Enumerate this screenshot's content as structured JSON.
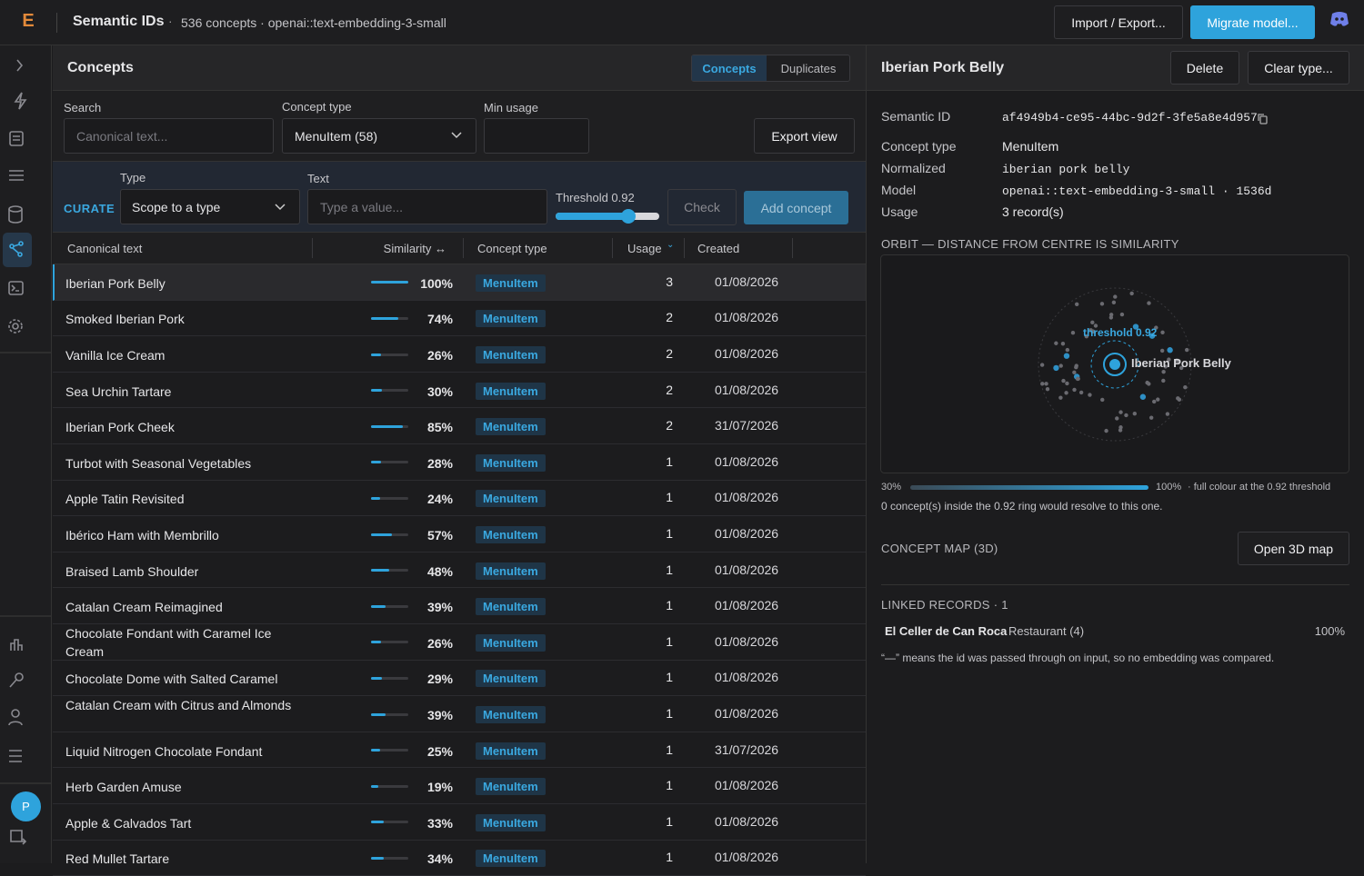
{
  "header": {
    "title": "Semantic IDs",
    "subtitle": "536 concepts · openai::text-embedding-3-small",
    "buttons": [
      "Import / Export...",
      "Migrate model..."
    ]
  },
  "sidebar": {
    "avatar": "P"
  },
  "concepts": {
    "title": "Concepts",
    "tabs": [
      "Concepts",
      "Duplicates"
    ],
    "filters": {
      "search_label": "Search",
      "search_placeholder": "Canonical text...",
      "type_label": "Concept type",
      "type_value": "MenuItem (58)",
      "min_usage_label": "Min usage",
      "export": "Export view"
    },
    "curate": {
      "label": "CURATE",
      "type_label": "Type",
      "type_value": "Scope to a type",
      "text_label": "Text",
      "text_placeholder": "Type a value...",
      "threshold": "Threshold 0.92",
      "check": "Check",
      "add": "Add concept"
    },
    "table": {
      "columns": [
        "Canonical text",
        "Similarity ↔",
        "Concept type",
        "Usage",
        "Created"
      ],
      "rows": [
        {
          "name": "Iberian Pork Belly",
          "similarity": 100,
          "similarity_label": "100%",
          "type": "MenuItem",
          "usage": 3,
          "created": "01/08/2026"
        },
        {
          "name": "Smoked Iberian Pork",
          "similarity": 74,
          "similarity_label": "74%",
          "type": "MenuItem",
          "usage": 2,
          "created": "01/08/2026"
        },
        {
          "name": "Vanilla Ice Cream",
          "similarity": 26,
          "similarity_label": "26%",
          "type": "MenuItem",
          "usage": 2,
          "created": "01/08/2026"
        },
        {
          "name": "Sea Urchin Tartare",
          "similarity": 30,
          "similarity_label": "30%",
          "type": "MenuItem",
          "usage": 2,
          "created": "01/08/2026"
        },
        {
          "name": "Iberian Pork Cheek",
          "similarity": 85,
          "similarity_label": "85%",
          "type": "MenuItem",
          "usage": 2,
          "created": "31/07/2026"
        },
        {
          "name": "Turbot with Seasonal Vegetables",
          "similarity": 28,
          "similarity_label": "28%",
          "type": "MenuItem",
          "usage": 1,
          "created": "01/08/2026"
        },
        {
          "name": "Apple Tatin Revisited",
          "similarity": 24,
          "similarity_label": "24%",
          "type": "MenuItem",
          "usage": 1,
          "created": "01/08/2026"
        },
        {
          "name": "Ibérico Ham with Membrillo",
          "similarity": 57,
          "similarity_label": "57%",
          "type": "MenuItem",
          "usage": 1,
          "created": "01/08/2026"
        },
        {
          "name": "Braised Lamb Shoulder",
          "similarity": 48,
          "similarity_label": "48%",
          "type": "MenuItem",
          "usage": 1,
          "created": "01/08/2026"
        },
        {
          "name": "Catalan Cream Reimagined",
          "similarity": 39,
          "similarity_label": "39%",
          "type": "MenuItem",
          "usage": 1,
          "created": "01/08/2026"
        },
        {
          "name": "Chocolate Fondant with Caramel Ice Cream",
          "similarity": 26,
          "similarity_label": "26%",
          "type": "MenuItem",
          "usage": 1,
          "created": "01/08/2026"
        },
        {
          "name": "Chocolate Dome with Salted Caramel",
          "similarity": 29,
          "similarity_label": "29%",
          "type": "MenuItem",
          "usage": 1,
          "created": "01/08/2026"
        },
        {
          "name": "Catalan Cream with Citrus and Almonds",
          "similarity": 39,
          "similarity_label": "39%",
          "type": "MenuItem",
          "usage": 1,
          "created": "01/08/2026"
        },
        {
          "name": "Liquid Nitrogen Chocolate Fondant",
          "similarity": 25,
          "similarity_label": "25%",
          "type": "MenuItem",
          "usage": 1,
          "created": "31/07/2026"
        },
        {
          "name": "Herb Garden Amuse",
          "similarity": 19,
          "similarity_label": "19%",
          "type": "MenuItem",
          "usage": 1,
          "created": "01/08/2026"
        },
        {
          "name": "Apple & Calvados Tart",
          "similarity": 33,
          "similarity_label": "33%",
          "type": "MenuItem",
          "usage": 1,
          "created": "01/08/2026"
        },
        {
          "name": "Red Mullet Tartare",
          "similarity": 34,
          "similarity_label": "34%",
          "type": "MenuItem",
          "usage": 1,
          "created": "01/08/2026"
        }
      ]
    }
  },
  "detail": {
    "title": "Iberian Pork Belly",
    "buttons": [
      "Delete",
      "Clear type..."
    ],
    "fields": [
      {
        "label": "Semantic ID",
        "value": "af4949b4-ce95-44bc-9d2f-3fe5a8e4d957"
      },
      {
        "label": "Concept type",
        "value": "MenuItem"
      },
      {
        "label": "Normalized",
        "value": "iberian pork belly"
      },
      {
        "label": "Model",
        "value": "openai::text-embedding-3-small · 1536d"
      },
      {
        "label": "Usage",
        "value": "3 record(s)"
      }
    ],
    "orbit": {
      "heading": "ORBIT — DISTANCE FROM CENTRE IS SIMILARITY",
      "threshold_label": "threshold 0.92",
      "center_label": "Iberian Pork Belly",
      "scale_min": "30%",
      "scale_max": "100%",
      "scale_note": "· full colour at the 0.92 threshold",
      "summary": "0 concept(s) inside the 0.92 ring would resolve to this one."
    },
    "map": {
      "heading": "CONCEPT MAP (3D)",
      "button": "Open 3D map"
    },
    "linked": {
      "heading": "LINKED RECORDS · 1",
      "records": [
        {
          "name": "El Celler de Can Roca",
          "type": "Restaurant (4)",
          "score": "100%"
        }
      ],
      "note": "“—” means the id was passed through on input, so no embedding was compared."
    }
  }
}
